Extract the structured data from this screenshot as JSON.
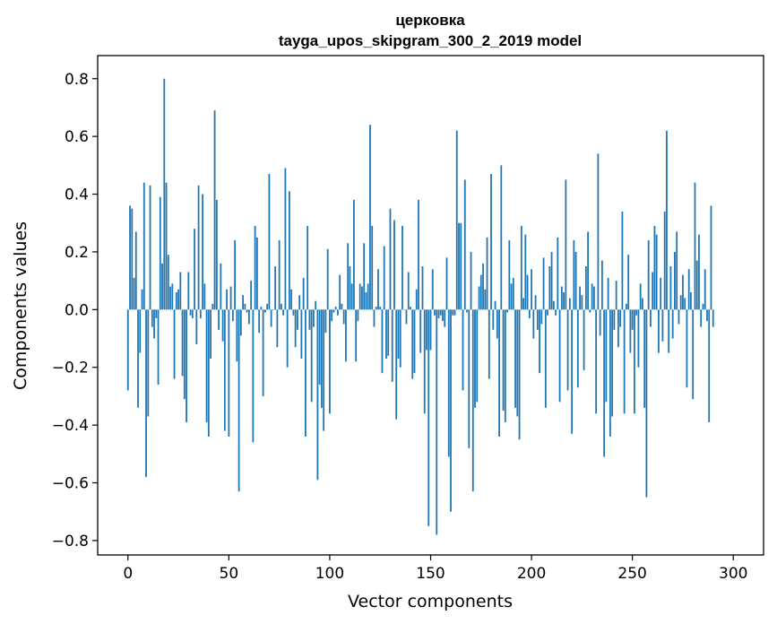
{
  "chart_data": {
    "type": "bar",
    "title": "церковка",
    "subtitle": "tayga_upos_skipgram_300_2_2019 model",
    "xlabel": "Vector components",
    "ylabel": "Components values",
    "xlim": [
      -15,
      315
    ],
    "ylim": [
      -0.85,
      0.88
    ],
    "xticks": [
      0,
      50,
      100,
      150,
      200,
      250,
      300
    ],
    "xtick_labels": [
      "0",
      "50",
      "100",
      "150",
      "200",
      "250",
      "300"
    ],
    "yticks": [
      -0.8,
      -0.6,
      -0.4,
      -0.2,
      0.0,
      0.2,
      0.4,
      0.6,
      0.8
    ],
    "ytick_labels": [
      "−0.8",
      "−0.6",
      "−0.4",
      "−0.2",
      "0.0",
      "0.2",
      "0.4",
      "0.6",
      "0.8"
    ],
    "bar_color": "#1f77b4",
    "grid": false,
    "values": [
      -0.28,
      0.36,
      0.35,
      0.11,
      0.27,
      -0.34,
      -0.15,
      0.07,
      0.44,
      -0.58,
      -0.37,
      0.43,
      -0.06,
      -0.1,
      -0.03,
      -0.26,
      0.39,
      0.16,
      0.8,
      0.44,
      0.19,
      0.08,
      0.09,
      -0.24,
      0.06,
      0.07,
      0.13,
      -0.23,
      -0.31,
      -0.39,
      0.13,
      -0.02,
      -0.03,
      0.28,
      -0.12,
      0.43,
      -0.03,
      0.4,
      0.09,
      -0.39,
      -0.44,
      -0.17,
      0.02,
      0.69,
      0.38,
      -0.07,
      0.16,
      -0.11,
      -0.42,
      0.07,
      -0.44,
      0.08,
      -0.04,
      0.24,
      -0.18,
      -0.63,
      -0.09,
      0.05,
      0.02,
      -0.01,
      -0.05,
      0.1,
      -0.46,
      0.29,
      0.25,
      -0.08,
      0.01,
      -0.3,
      -0.01,
      0.02,
      0.47,
      -0.06,
      0.0,
      0.15,
      -0.13,
      0.24,
      0.02,
      -0.02,
      0.49,
      -0.2,
      0.41,
      0.07,
      -0.02,
      -0.13,
      -0.07,
      0.05,
      -0.17,
      0.11,
      -0.44,
      0.29,
      -0.07,
      -0.32,
      -0.06,
      0.03,
      -0.59,
      -0.26,
      -0.34,
      -0.42,
      -0.08,
      0.21,
      -0.36,
      -0.04,
      -0.01,
      0.01,
      -0.02,
      0.12,
      0.02,
      -0.05,
      -0.18,
      0.23,
      0.15,
      0.09,
      0.38,
      -0.18,
      -0.04,
      0.09,
      0.08,
      0.23,
      0.06,
      0.09,
      0.64,
      0.29,
      -0.06,
      0.01,
      0.14,
      0.01,
      -0.22,
      0.22,
      -0.17,
      -0.16,
      0.35,
      -0.25,
      0.31,
      -0.38,
      -0.17,
      -0.2,
      0.29,
      0.0,
      -0.05,
      0.13,
      0.01,
      -0.24,
      -0.22,
      0.07,
      0.38,
      -0.15,
      0.15,
      -0.36,
      -0.14,
      -0.75,
      -0.14,
      0.14,
      -0.02,
      -0.78,
      -0.03,
      -0.02,
      -0.04,
      -0.06,
      0.18,
      -0.51,
      -0.7,
      -0.02,
      -0.02,
      0.62,
      0.3,
      0.3,
      -0.28,
      0.45,
      -0.01,
      -0.48,
      0.2,
      -0.63,
      -0.34,
      -0.32,
      0.08,
      0.12,
      0.16,
      0.07,
      0.25,
      -0.24,
      0.47,
      -0.07,
      0.03,
      -0.1,
      -0.44,
      0.5,
      -0.35,
      -0.39,
      -0.01,
      0.24,
      0.09,
      0.11,
      -0.34,
      -0.37,
      -0.45,
      0.29,
      0.04,
      0.26,
      0.12,
      -0.03,
      0.14,
      -0.1,
      0.05,
      -0.07,
      -0.22,
      -0.05,
      0.18,
      -0.34,
      -0.02,
      0.15,
      0.2,
      0.03,
      -0.02,
      0.25,
      -0.32,
      0.08,
      0.06,
      0.45,
      -0.28,
      0.04,
      -0.43,
      0.24,
      0.2,
      -0.27,
      0.08,
      0.05,
      -0.21,
      0.15,
      0.27,
      -0.01,
      0.09,
      0.08,
      -0.36,
      0.54,
      -0.09,
      0.17,
      -0.51,
      -0.32,
      0.11,
      -0.44,
      -0.37,
      -0.07,
      0.1,
      -0.13,
      -0.06,
      0.34,
      -0.36,
      0.02,
      0.19,
      -0.15,
      -0.07,
      -0.36,
      -0.02,
      -0.2,
      0.09,
      0.04,
      -0.34,
      -0.65,
      0.24,
      -0.06,
      0.13,
      0.29,
      0.26,
      -0.15,
      0.11,
      -0.11,
      0.34,
      0.62,
      -0.15,
      0.15,
      -0.1,
      0.2,
      0.27,
      -0.05,
      0.05,
      0.12,
      0.04,
      -0.27,
      0.14,
      0.06,
      -0.31,
      0.44,
      0.17,
      0.26,
      -0.06,
      0.02,
      0.14,
      -0.04,
      -0.39,
      0.36,
      -0.06
    ]
  }
}
